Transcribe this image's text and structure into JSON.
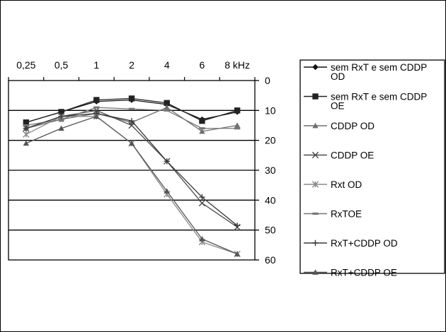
{
  "chart_data": {
    "type": "line",
    "x_categories": [
      "0,25",
      "0,5",
      "1",
      "2",
      "4",
      "6",
      "8 kHz"
    ],
    "y_axis": {
      "min": 0,
      "max": 60,
      "step": 10,
      "reversed": true,
      "position": "right",
      "tick_labels": [
        "0",
        "10",
        "20",
        "30",
        "40",
        "50",
        "60"
      ]
    },
    "x_axis_position": "top",
    "grid": "horizontal",
    "legend_position": "right",
    "series": [
      {
        "name": "sem RxT e sem CDDP OD",
        "color": "#111111",
        "marker": "diamond",
        "values": [
          14,
          10.5,
          7,
          6.5,
          8,
          13,
          10.5
        ]
      },
      {
        "name": "sem RxT e sem CDDP OE",
        "color": "#222222",
        "marker": "square",
        "values": [
          14,
          10.5,
          6.5,
          6,
          7.5,
          13.5,
          10
        ]
      },
      {
        "name": "CDDP OD",
        "color": "#6f6f6f",
        "marker": "triangle",
        "values": [
          16,
          13,
          11,
          14,
          9,
          17,
          15
        ]
      },
      {
        "name": "CDDP OE",
        "color": "#4a4a4a",
        "marker": "x",
        "values": [
          16,
          12,
          10,
          15,
          27,
          41,
          49
        ]
      },
      {
        "name": "Rxt OD",
        "color": "#8a8a8a",
        "marker": "asterisk",
        "values": [
          18,
          12,
          12,
          21,
          38,
          54,
          58
        ]
      },
      {
        "name": "RxTOE",
        "color": "#777777",
        "marker": "dash",
        "values": [
          15,
          13,
          9,
          9.5,
          10,
          16,
          16
        ]
      },
      {
        "name": "RxT+CDDP OD",
        "color": "#3a3a3a",
        "marker": "plus",
        "values": [
          16,
          12,
          11,
          13.5,
          27,
          39,
          48.5
        ]
      },
      {
        "name": "RxT+CDDP OE",
        "color": "#555555",
        "marker": "triangle",
        "values": [
          21,
          16,
          12,
          21,
          37,
          53,
          58
        ]
      }
    ],
    "legend_lines": [
      [
        "sem RxT e sem CDDP",
        "OD"
      ],
      [
        "sem RxT e sem CDDP",
        "OE"
      ],
      [
        "CDDP OD"
      ],
      [
        "CDDP OE"
      ],
      [
        "Rxt OD"
      ],
      [
        "RxTOE"
      ],
      [
        "RxT+CDDP OD"
      ],
      [
        "RxT+CDDP OE"
      ]
    ]
  }
}
